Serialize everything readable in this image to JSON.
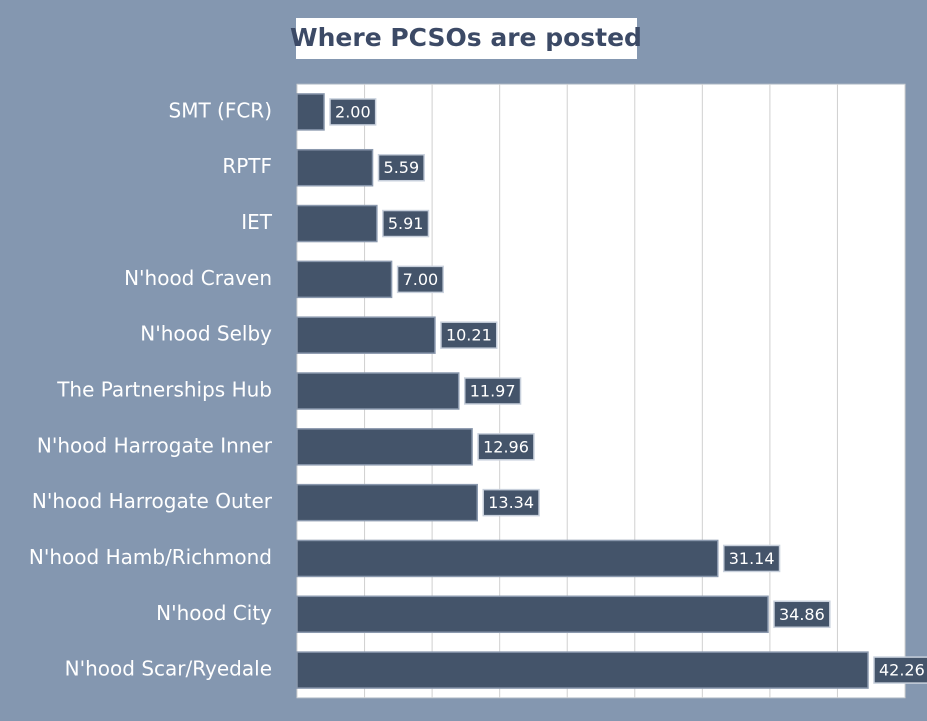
{
  "chart_data": {
    "type": "bar",
    "orientation": "horizontal",
    "title": "Where PCSOs are posted",
    "categories": [
      "SMT (FCR)",
      "RPTF",
      "IET",
      "N'hood Craven",
      "N'hood Selby",
      "The Partnerships Hub",
      "N'hood Harrogate Inner",
      "N'hood Harrogate Outer",
      "N'hood Hamb/Richmond",
      "N'hood City",
      "N'hood Scar/Ryedale"
    ],
    "values": [
      2,
      5.59,
      5.91,
      7,
      10.21,
      11.97,
      12.96,
      13.34,
      31.14,
      34.86,
      42.26
    ],
    "value_labels": [
      "2.00",
      "5.59",
      "5.91",
      "7.00",
      "10.21",
      "11.97",
      "12.96",
      "13.34",
      "31.14",
      "34.86",
      "42.26"
    ],
    "color": "#44546a",
    "xlim": [
      0,
      45
    ],
    "xticks": [
      0,
      5,
      10,
      15,
      20,
      25,
      30,
      35,
      40,
      45
    ],
    "grid": true
  }
}
